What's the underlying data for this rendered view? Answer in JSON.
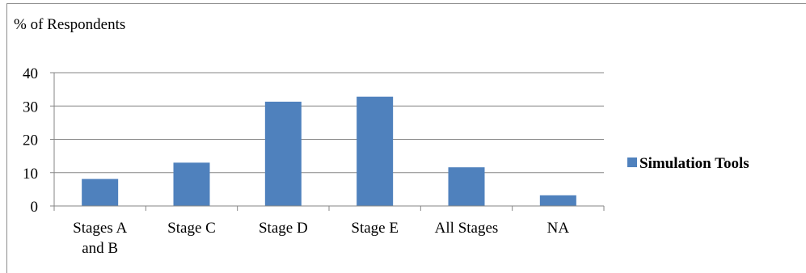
{
  "chart_data": {
    "type": "bar",
    "ylabel": "%  of Respondents",
    "xlabel": "",
    "categories": [
      "Stages A and B",
      "Stage C",
      "Stage D",
      "Stage E",
      "All Stages",
      "NA"
    ],
    "category_lines": [
      [
        "Stages A",
        "and B"
      ],
      [
        "Stage C"
      ],
      [
        "Stage D"
      ],
      [
        "Stage E"
      ],
      [
        "All Stages"
      ],
      [
        "NA"
      ]
    ],
    "series": [
      {
        "name": "Simulation Tools",
        "values": [
          8.1,
          13,
          31.3,
          32.8,
          11.6,
          3.2
        ]
      }
    ],
    "ylim": [
      0,
      40
    ],
    "yticks": [
      0,
      10,
      20,
      30,
      40
    ],
    "grid": "horizontal",
    "legend": "right",
    "colors": {
      "bar": "#4f81bd",
      "grid": "#868686",
      "axis": "#868686",
      "frame": "#8c8c8c"
    }
  }
}
